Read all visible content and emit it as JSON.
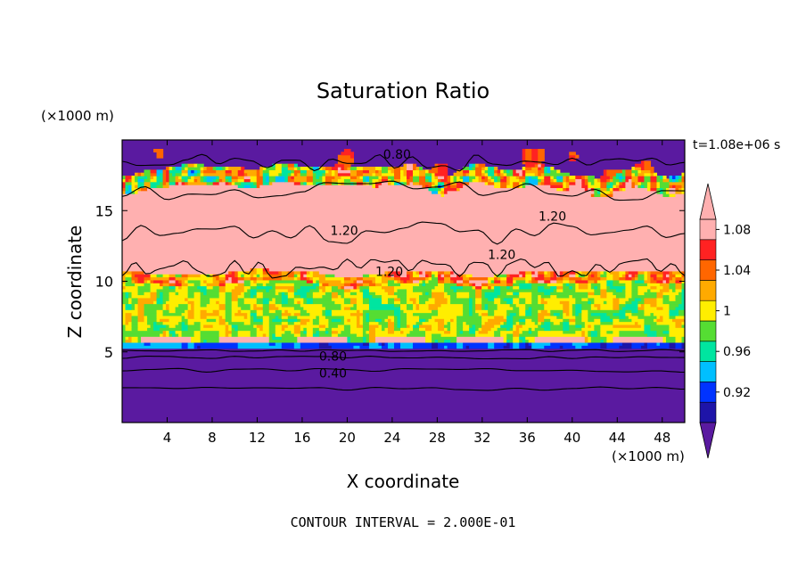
{
  "chart_data": {
    "type": "heatmap",
    "title": "Saturation Ratio",
    "xlabel": "X coordinate",
    "ylabel": "Z coordinate",
    "x_units": "(×1000 m)",
    "y_units": "(×1000 m)",
    "time_label": "t=1.08e+06 s",
    "footer": "CONTOUR INTERVAL = 2.000E-01",
    "xlim": [
      0,
      50
    ],
    "ylim": [
      0,
      20
    ],
    "x_ticks": [
      4,
      8,
      12,
      16,
      20,
      24,
      28,
      32,
      36,
      40,
      44,
      48
    ],
    "y_ticks": [
      5,
      10,
      15
    ],
    "colorbar": {
      "levels": [
        0.9,
        0.92,
        0.94,
        0.96,
        0.98,
        1.0,
        1.02,
        1.04,
        1.06,
        1.08,
        1.1
      ],
      "colors": [
        "#5a1aa0",
        "#1e14a8",
        "#0033ff",
        "#00bfff",
        "#00e5a0",
        "#55dd33",
        "#ffee00",
        "#ffaa00",
        "#ff6600",
        "#ff2222",
        "#ffb0b0"
      ],
      "tick_labels": [
        "0.92",
        "0.96",
        "1",
        "1.04",
        "1.08"
      ]
    },
    "contour_labels": [
      {
        "text": "0.80",
        "x": 23.2,
        "z": 19.0
      },
      {
        "text": "1.20",
        "x": 18.5,
        "z": 13.6
      },
      {
        "text": "1.20",
        "x": 37.0,
        "z": 14.6
      },
      {
        "text": "1.20",
        "x": 32.5,
        "z": 11.9
      },
      {
        "text": "1.20",
        "x": 22.5,
        "z": 10.7
      },
      {
        "text": "0.80",
        "x": 17.5,
        "z": 4.7
      },
      {
        "text": "0.40",
        "x": 17.5,
        "z": 3.5
      }
    ]
  },
  "labels": {
    "title": "Saturation Ratio",
    "units_top": "(×1000 m)",
    "time": "t=1.08e+06 s",
    "units_x": "(×1000 m)",
    "xlabel": "X coordinate",
    "ylabel": "Z coordinate",
    "footer": "CONTOUR INTERVAL = 2.000E-01"
  }
}
